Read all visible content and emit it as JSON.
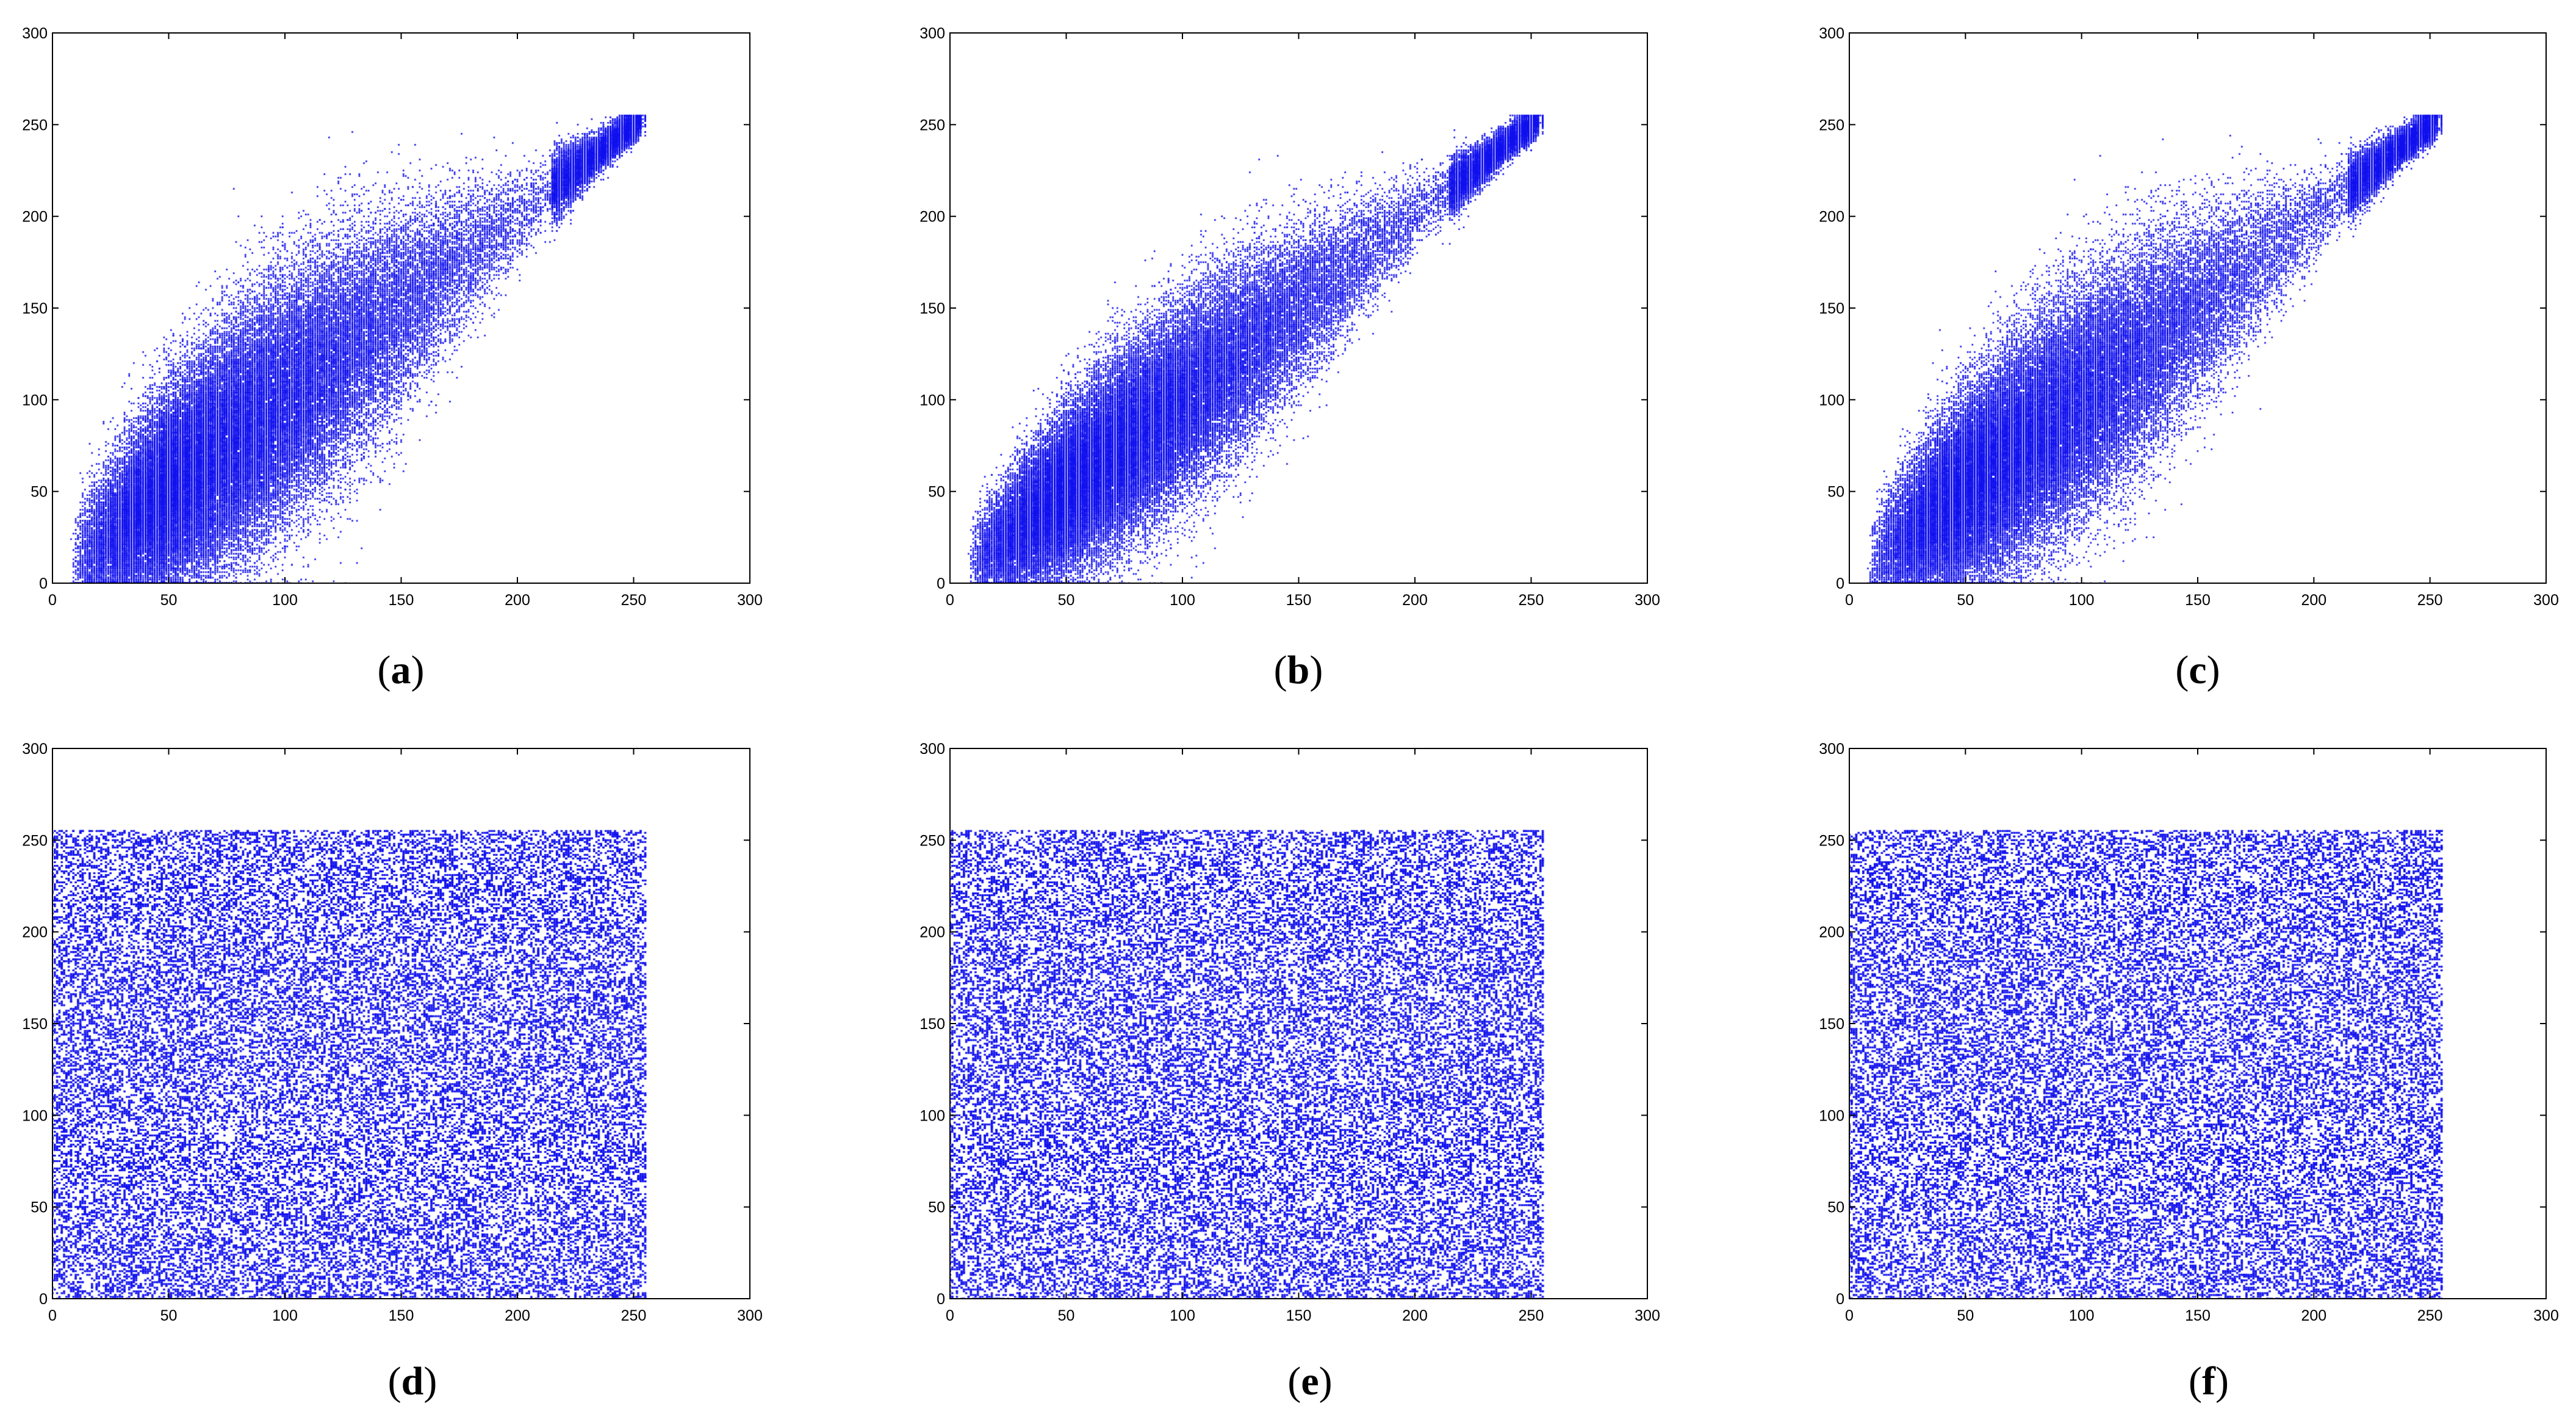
{
  "chart_data": [
    {
      "panel": "a",
      "type": "scatter",
      "caption": {
        "open": "(",
        "letter": "a",
        "close": ")"
      },
      "distribution": "correlated",
      "spread": 26,
      "xlim": [
        0,
        300
      ],
      "ylim": [
        0,
        300
      ],
      "xticks": [
        0,
        50,
        100,
        150,
        200,
        250,
        300
      ],
      "yticks": [
        0,
        50,
        100,
        150,
        200,
        250,
        300
      ],
      "xlabel": "",
      "ylabel": "",
      "grid": false,
      "data_range": [
        0,
        255
      ],
      "color": "#1010ee"
    },
    {
      "panel": "b",
      "type": "scatter",
      "caption": {
        "open": "(",
        "letter": "b",
        "close": ")"
      },
      "distribution": "correlated",
      "spread": 20,
      "xlim": [
        0,
        300
      ],
      "ylim": [
        0,
        300
      ],
      "xticks": [
        0,
        50,
        100,
        150,
        200,
        250,
        300
      ],
      "yticks": [
        0,
        50,
        100,
        150,
        200,
        250,
        300
      ],
      "xlabel": "",
      "ylabel": "",
      "grid": false,
      "data_range": [
        0,
        255
      ],
      "color": "#1010ee"
    },
    {
      "panel": "c",
      "type": "scatter",
      "caption": {
        "open": "(",
        "letter": "c",
        "close": ")"
      },
      "distribution": "correlated",
      "spread": 24,
      "xlim": [
        0,
        300
      ],
      "ylim": [
        0,
        300
      ],
      "xticks": [
        0,
        50,
        100,
        150,
        200,
        250,
        300
      ],
      "yticks": [
        0,
        50,
        100,
        150,
        200,
        250,
        300
      ],
      "xlabel": "",
      "ylabel": "",
      "grid": false,
      "data_range": [
        0,
        255
      ],
      "color": "#1010ee"
    },
    {
      "panel": "d",
      "type": "scatter",
      "caption": {
        "open": "(",
        "letter": "d",
        "close": ")"
      },
      "distribution": "uniform",
      "xlim": [
        0,
        300
      ],
      "ylim": [
        0,
        300
      ],
      "xticks": [
        0,
        50,
        100,
        150,
        200,
        250,
        300
      ],
      "yticks": [
        0,
        50,
        100,
        150,
        200,
        250,
        300
      ],
      "xlabel": "",
      "ylabel": "",
      "grid": false,
      "data_range": [
        0,
        255
      ],
      "color": "#1010ee"
    },
    {
      "panel": "e",
      "type": "scatter",
      "caption": {
        "open": "(",
        "letter": "e",
        "close": ")"
      },
      "distribution": "uniform",
      "xlim": [
        0,
        300
      ],
      "ylim": [
        0,
        300
      ],
      "xticks": [
        0,
        50,
        100,
        150,
        200,
        250,
        300
      ],
      "yticks": [
        0,
        50,
        100,
        150,
        200,
        250,
        300
      ],
      "xlabel": "",
      "ylabel": "",
      "grid": false,
      "data_range": [
        0,
        255
      ],
      "color": "#1010ee"
    },
    {
      "panel": "f",
      "type": "scatter",
      "caption": {
        "open": "(",
        "letter": "f",
        "close": ")"
      },
      "distribution": "uniform",
      "xlim": [
        0,
        300
      ],
      "ylim": [
        0,
        300
      ],
      "xticks": [
        0,
        50,
        100,
        150,
        200,
        250,
        300
      ],
      "yticks": [
        0,
        50,
        100,
        150,
        200,
        250,
        300
      ],
      "xlabel": "",
      "ylabel": "",
      "grid": false,
      "data_range": [
        0,
        255
      ],
      "color": "#1010ee"
    }
  ]
}
